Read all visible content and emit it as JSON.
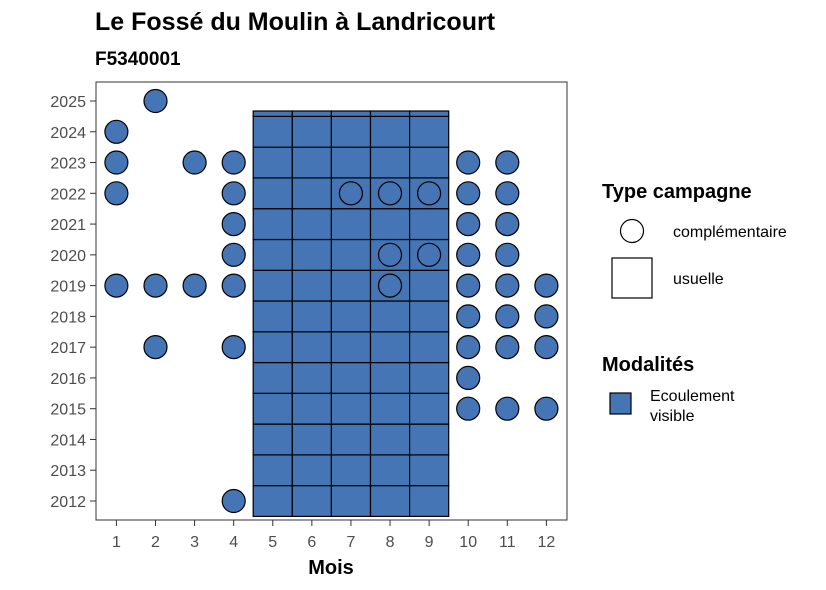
{
  "chart_data": {
    "type": "scatter",
    "title": "Le Fossé du Moulin à Landricourt",
    "subtitle": "F5340001",
    "xlabel": "Mois",
    "ylabel": "",
    "x_ticks": [
      "1",
      "2",
      "3",
      "4",
      "5",
      "6",
      "7",
      "8",
      "9",
      "10",
      "11",
      "12"
    ],
    "y_ticks": [
      "2012",
      "2013",
      "2014",
      "2015",
      "2016",
      "2017",
      "2018",
      "2019",
      "2020",
      "2021",
      "2022",
      "2023",
      "2024",
      "2025"
    ],
    "xlim": [
      0.5,
      12.5
    ],
    "ylim": [
      2011.4,
      2025.6
    ],
    "fill_color": "#4575b4",
    "usuelle": {
      "months": [
        5,
        6,
        7,
        8,
        9
      ],
      "years": [
        2012,
        2025
      ],
      "note_top_row": "2025 row only partially covered"
    },
    "complementaire": [
      {
        "month": 1,
        "year": 2024
      },
      {
        "month": 1,
        "year": 2023
      },
      {
        "month": 1,
        "year": 2022
      },
      {
        "month": 1,
        "year": 2019
      },
      {
        "month": 2,
        "year": 2025
      },
      {
        "month": 2,
        "year": 2019
      },
      {
        "month": 2,
        "year": 2017
      },
      {
        "month": 3,
        "year": 2023
      },
      {
        "month": 3,
        "year": 2019
      },
      {
        "month": 4,
        "year": 2023
      },
      {
        "month": 4,
        "year": 2022
      },
      {
        "month": 4,
        "year": 2021
      },
      {
        "month": 4,
        "year": 2020
      },
      {
        "month": 4,
        "year": 2019
      },
      {
        "month": 4,
        "year": 2017
      },
      {
        "month": 4,
        "year": 2012
      },
      {
        "month": 7,
        "year": 2022
      },
      {
        "month": 8,
        "year": 2022
      },
      {
        "month": 9,
        "year": 2022
      },
      {
        "month": 8,
        "year": 2020
      },
      {
        "month": 9,
        "year": 2020
      },
      {
        "month": 8,
        "year": 2019
      },
      {
        "month": 10,
        "year": 2023
      },
      {
        "month": 10,
        "year": 2022
      },
      {
        "month": 10,
        "year": 2021
      },
      {
        "month": 10,
        "year": 2020
      },
      {
        "month": 10,
        "year": 2019
      },
      {
        "month": 10,
        "year": 2018
      },
      {
        "month": 10,
        "year": 2017
      },
      {
        "month": 10,
        "year": 2016
      },
      {
        "month": 10,
        "year": 2015
      },
      {
        "month": 11,
        "year": 2023
      },
      {
        "month": 11,
        "year": 2022
      },
      {
        "month": 11,
        "year": 2021
      },
      {
        "month": 11,
        "year": 2020
      },
      {
        "month": 11,
        "year": 2019
      },
      {
        "month": 11,
        "year": 2018
      },
      {
        "month": 11,
        "year": 2017
      },
      {
        "month": 11,
        "year": 2015
      },
      {
        "month": 12,
        "year": 2019
      },
      {
        "month": 12,
        "year": 2018
      },
      {
        "month": 12,
        "year": 2017
      },
      {
        "month": 12,
        "year": 2015
      }
    ],
    "legend": {
      "type_title": "Type campagne",
      "type_items": [
        "complémentaire",
        "usuelle"
      ],
      "modal_title": "Modalités",
      "modal_items": [
        "Ecoulement visible"
      ]
    }
  }
}
